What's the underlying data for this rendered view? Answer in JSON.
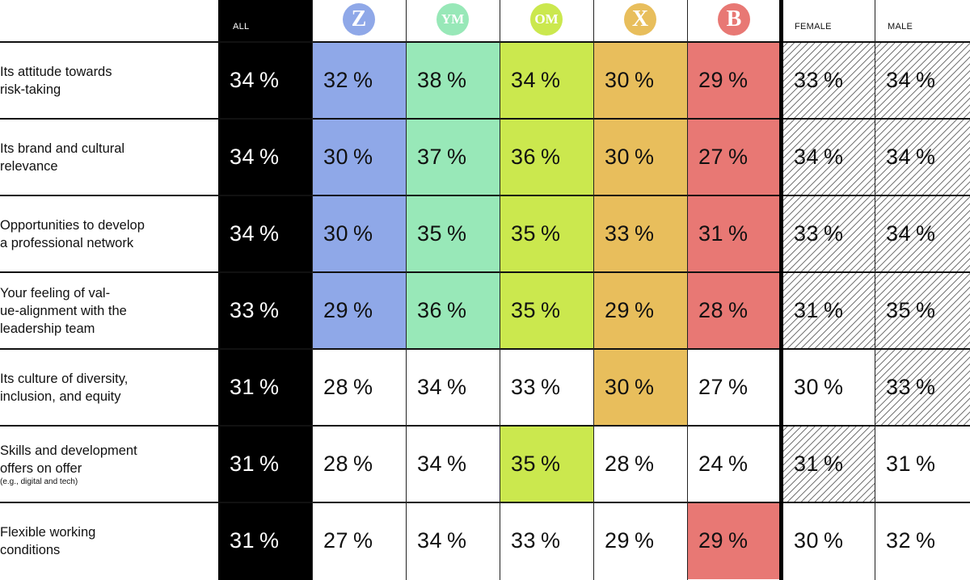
{
  "header": {
    "all_label": "ALL",
    "female_label": "FEMALE",
    "male_label": "MALE",
    "generations": [
      {
        "label": "Z",
        "color": "#8FA8E8"
      },
      {
        "label": "YM",
        "color": "#98E8B8"
      },
      {
        "label": "OM",
        "color": "#CBE84E"
      },
      {
        "label": "X",
        "color": "#E8BE5C"
      },
      {
        "label": "B",
        "color": "#E87874"
      }
    ]
  },
  "highlight_colors": {
    "Z": "#8FA8E8",
    "YM": "#98E8B8",
    "OM": "#CBE84E",
    "X": "#E8BE5C",
    "B": "#E87874"
  },
  "chart_data": {
    "type": "table",
    "columns": [
      "ALL",
      "Z",
      "YM",
      "OM",
      "X",
      "B",
      "FEMALE",
      "MALE"
    ],
    "rows": [
      {
        "label_lines": [
          "Its attitude towards",
          "risk-taking"
        ],
        "note": "",
        "values": [
          "34%",
          "32%",
          "38%",
          "34%",
          "30%",
          "29%",
          "33%",
          "34%"
        ],
        "highlighted": [
          false,
          true,
          true,
          true,
          true,
          true,
          true,
          true
        ]
      },
      {
        "label_lines": [
          "Its brand and cultural",
          "relevance"
        ],
        "note": "",
        "values": [
          "34%",
          "30%",
          "37%",
          "36%",
          "30%",
          "27%",
          "34%",
          "34%"
        ],
        "highlighted": [
          false,
          true,
          true,
          true,
          true,
          true,
          true,
          true
        ]
      },
      {
        "label_lines": [
          "Opportunities to develop",
          "a professional network"
        ],
        "note": "",
        "values": [
          "34%",
          "30%",
          "35%",
          "35%",
          "33%",
          "31%",
          "33%",
          "34%"
        ],
        "highlighted": [
          false,
          true,
          true,
          true,
          true,
          true,
          true,
          true
        ]
      },
      {
        "label_lines": [
          "Your feeling of val-",
          "ue-alignment with the",
          "leadership team"
        ],
        "note": "",
        "values": [
          "33%",
          "29%",
          "36%",
          "35%",
          "29%",
          "28%",
          "31%",
          "35%"
        ],
        "highlighted": [
          false,
          true,
          true,
          true,
          true,
          true,
          true,
          true
        ]
      },
      {
        "label_lines": [
          "Its culture of diversity,",
          "inclusion, and equity"
        ],
        "note": "",
        "values": [
          "31%",
          "28%",
          "34%",
          "33%",
          "30%",
          "27%",
          "30%",
          "33%"
        ],
        "highlighted": [
          false,
          false,
          false,
          false,
          true,
          false,
          false,
          true
        ]
      },
      {
        "label_lines": [
          "Skills and development",
          "offers on offer"
        ],
        "note": "(e.g., digital and tech)",
        "values": [
          "31%",
          "28%",
          "34%",
          "35%",
          "28%",
          "24%",
          "31%",
          "31%"
        ],
        "highlighted": [
          false,
          false,
          false,
          true,
          false,
          false,
          true,
          false
        ]
      },
      {
        "label_lines": [
          "Flexible working",
          "conditions"
        ],
        "note": "",
        "values": [
          "31%",
          "27%",
          "34%",
          "33%",
          "29%",
          "29%",
          "30%",
          "32%"
        ],
        "highlighted": [
          false,
          false,
          false,
          false,
          false,
          true,
          false,
          false
        ]
      }
    ]
  }
}
